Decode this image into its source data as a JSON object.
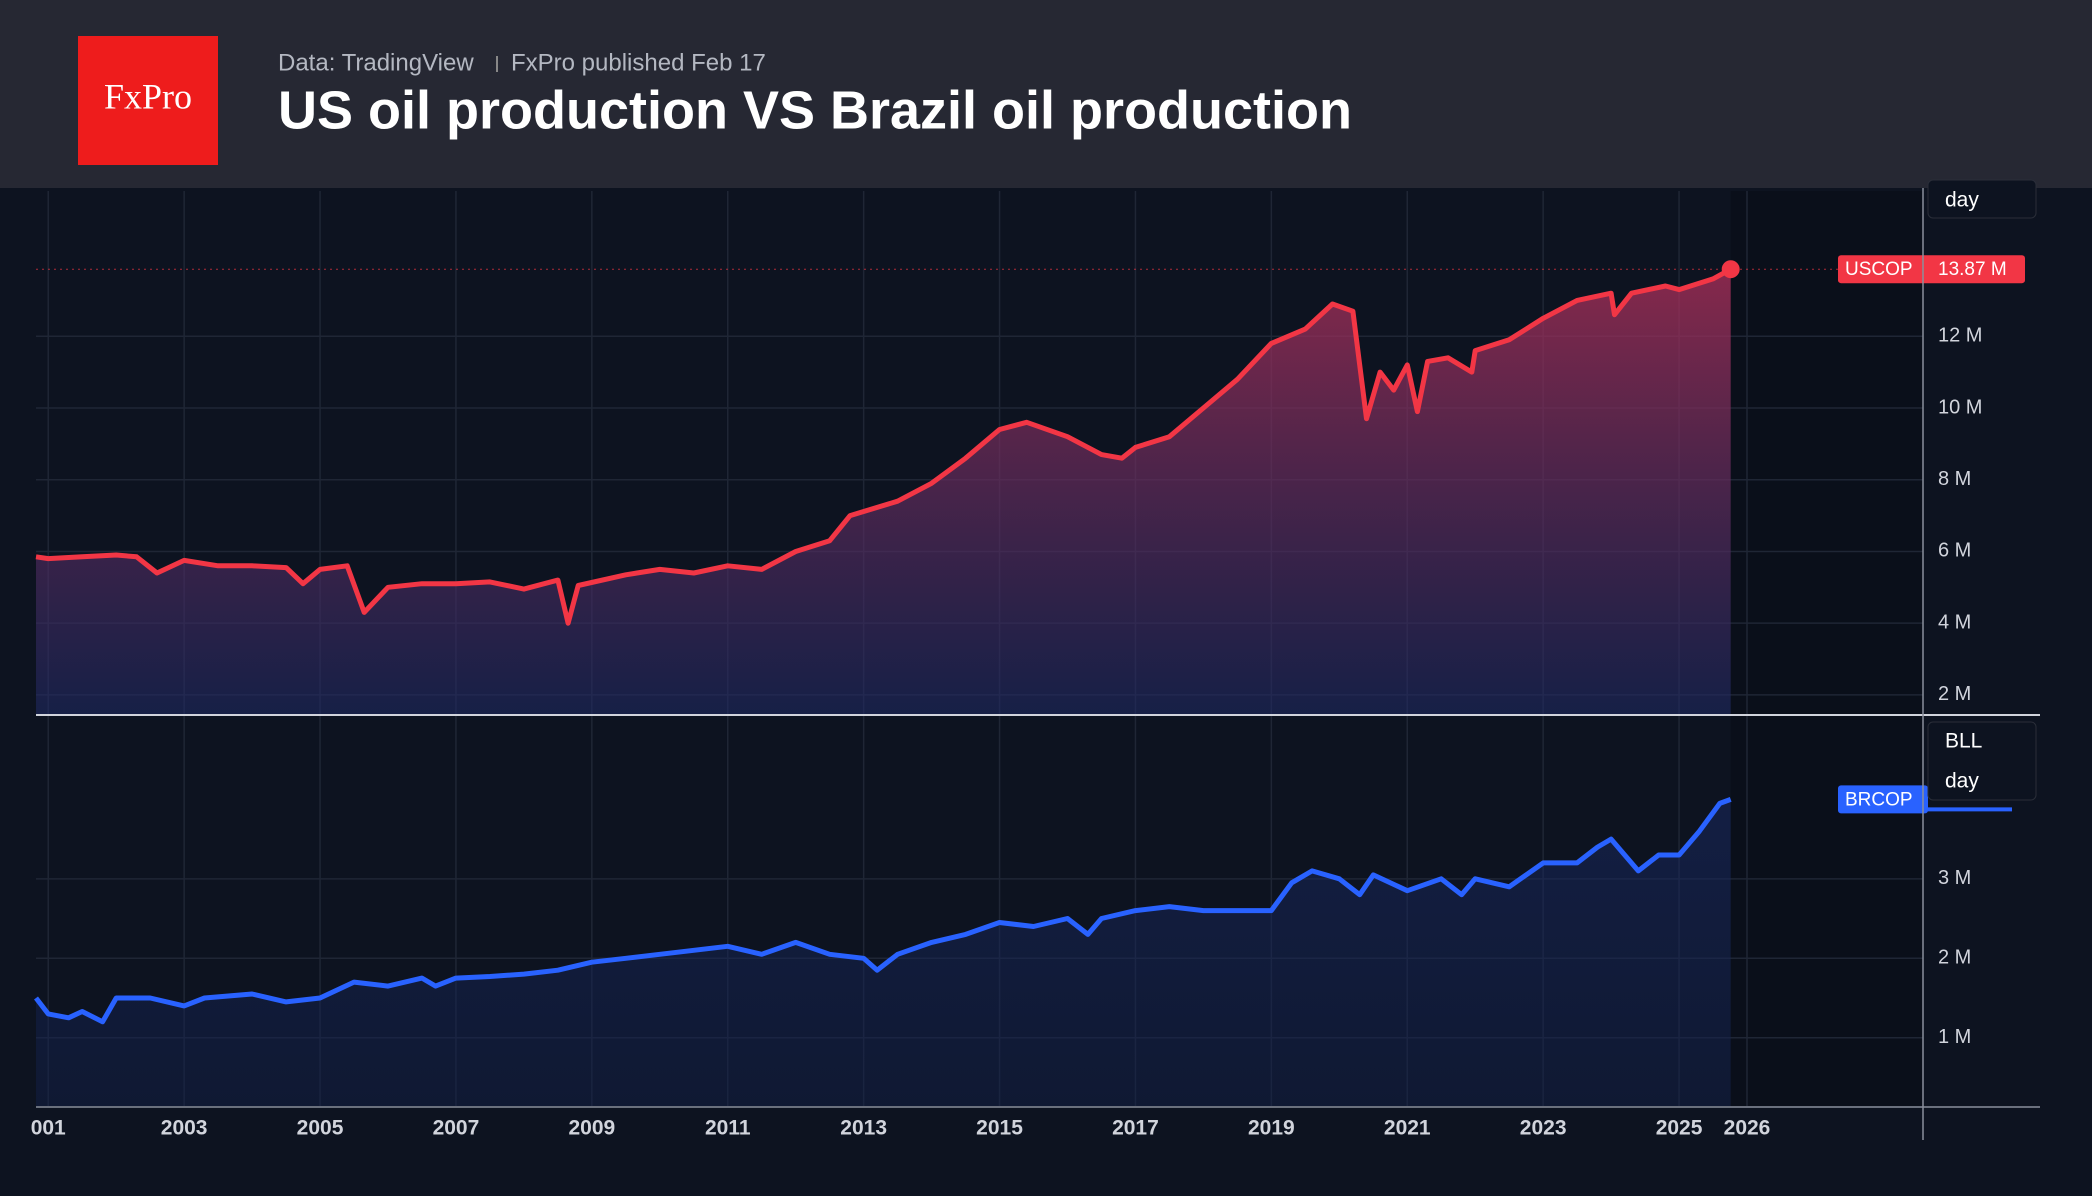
{
  "header": {
    "source": "Data: TradingView",
    "published": "FxPro published Feb 17",
    "title": "US oil production VS Brazil oil production",
    "logo": "FxPro"
  },
  "chart_data": [
    {
      "type": "line",
      "period": "day",
      "xlim": [
        2000.82,
        2028.59
      ],
      "ylim": [
        1.44,
        16.05
      ],
      "yticks": [
        {
          "value": 2,
          "label": "2 M"
        },
        {
          "value": 4,
          "label": "4 M"
        },
        {
          "value": 6,
          "label": "6 M"
        },
        {
          "value": 8,
          "label": "8 M"
        },
        {
          "value": 10,
          "label": "10 M"
        },
        {
          "value": 12,
          "label": "12 M"
        }
      ],
      "grid": true,
      "series": [
        {
          "name": "USCOP",
          "color": "#f23645",
          "last_label": "13.87 M",
          "x": [
            2000.82,
            2001.0,
            2001.5,
            2002.0,
            2002.3,
            2002.6,
            2003.0,
            2003.5,
            2004.0,
            2004.5,
            2004.75,
            2005.0,
            2005.4,
            2005.65,
            2006.0,
            2006.5,
            2007.0,
            2007.5,
            2008.0,
            2008.5,
            2008.65,
            2008.8,
            2009.5,
            2010.0,
            2010.5,
            2011.0,
            2011.5,
            2012.0,
            2012.5,
            2012.8,
            2013.5,
            2014.0,
            2014.5,
            2015.0,
            2015.4,
            2016.0,
            2016.5,
            2016.8,
            2017.0,
            2017.5,
            2018.0,
            2018.5,
            2019.0,
            2019.5,
            2019.9,
            2020.2,
            2020.4,
            2020.6,
            2020.8,
            2021.0,
            2021.15,
            2021.3,
            2021.6,
            2021.95,
            2022.0,
            2022.5,
            2023.0,
            2023.5,
            2024.0,
            2024.05,
            2024.3,
            2024.8,
            2025.0,
            2025.5,
            2025.76
          ],
          "values": [
            5.85,
            5.8,
            5.85,
            5.9,
            5.85,
            5.4,
            5.75,
            5.6,
            5.6,
            5.55,
            5.1,
            5.5,
            5.6,
            4.3,
            5.0,
            5.1,
            5.1,
            5.15,
            4.95,
            5.2,
            4.0,
            5.05,
            5.35,
            5.5,
            5.4,
            5.6,
            5.5,
            6.0,
            6.3,
            7.0,
            7.4,
            7.9,
            8.6,
            9.4,
            9.6,
            9.2,
            8.7,
            8.6,
            8.9,
            9.2,
            10.0,
            10.8,
            11.8,
            12.2,
            12.9,
            12.7,
            9.7,
            11.0,
            10.5,
            11.2,
            9.9,
            11.3,
            11.4,
            11.0,
            11.6,
            11.9,
            12.5,
            13.0,
            13.2,
            12.6,
            13.2,
            13.4,
            13.3,
            13.6,
            13.87
          ]
        }
      ]
    },
    {
      "type": "line",
      "unit": "BLL",
      "period": "day",
      "xlim": [
        2000.82,
        2028.59
      ],
      "ylim": [
        0.14,
        5.05
      ],
      "yticks": [
        {
          "value": 1,
          "label": "1 M"
        },
        {
          "value": 2,
          "label": "2 M"
        },
        {
          "value": 3,
          "label": "3 M"
        }
      ],
      "xticks": [
        {
          "value": 2001,
          "label": "001"
        },
        2003,
        2005,
        2007,
        2009,
        2011,
        2013,
        2015,
        2017,
        2019,
        2021,
        2023,
        2025,
        2026
      ],
      "grid": true,
      "series": [
        {
          "name": "BRCOP",
          "color": "#2962ff",
          "x": [
            2000.82,
            2001.0,
            2001.3,
            2001.5,
            2001.8,
            2002.0,
            2002.5,
            2003.0,
            2003.3,
            2004.0,
            2004.5,
            2005.0,
            2005.5,
            2006.0,
            2006.5,
            2006.7,
            2007.0,
            2007.5,
            2008.0,
            2008.5,
            2009.0,
            2009.5,
            2010.0,
            2010.5,
            2011.0,
            2011.5,
            2012.0,
            2012.5,
            2013.0,
            2013.2,
            2013.5,
            2014.0,
            2014.5,
            2015.0,
            2015.5,
            2016.0,
            2016.3,
            2016.5,
            2017.0,
            2017.5,
            2018.0,
            2018.5,
            2019.0,
            2019.3,
            2019.6,
            2020.0,
            2020.3,
            2020.5,
            2021.0,
            2021.5,
            2021.8,
            2022.0,
            2022.5,
            2023.0,
            2023.5,
            2023.8,
            2024.0,
            2024.4,
            2024.7,
            2025.0,
            2025.3,
            2025.6,
            2025.76
          ],
          "values": [
            1.5,
            1.3,
            1.25,
            1.33,
            1.2,
            1.5,
            1.5,
            1.4,
            1.5,
            1.55,
            1.45,
            1.5,
            1.7,
            1.65,
            1.75,
            1.65,
            1.75,
            1.77,
            1.8,
            1.85,
            1.95,
            2.0,
            2.05,
            2.1,
            2.15,
            2.05,
            2.2,
            2.05,
            2.0,
            1.85,
            2.05,
            2.2,
            2.3,
            2.45,
            2.4,
            2.5,
            2.3,
            2.5,
            2.6,
            2.65,
            2.6,
            2.6,
            2.6,
            2.95,
            3.1,
            3.0,
            2.8,
            3.05,
            2.85,
            3.0,
            2.8,
            3.0,
            2.9,
            3.2,
            3.2,
            3.4,
            3.5,
            3.1,
            3.3,
            3.3,
            3.6,
            3.95,
            4.0
          ]
        }
      ]
    }
  ]
}
